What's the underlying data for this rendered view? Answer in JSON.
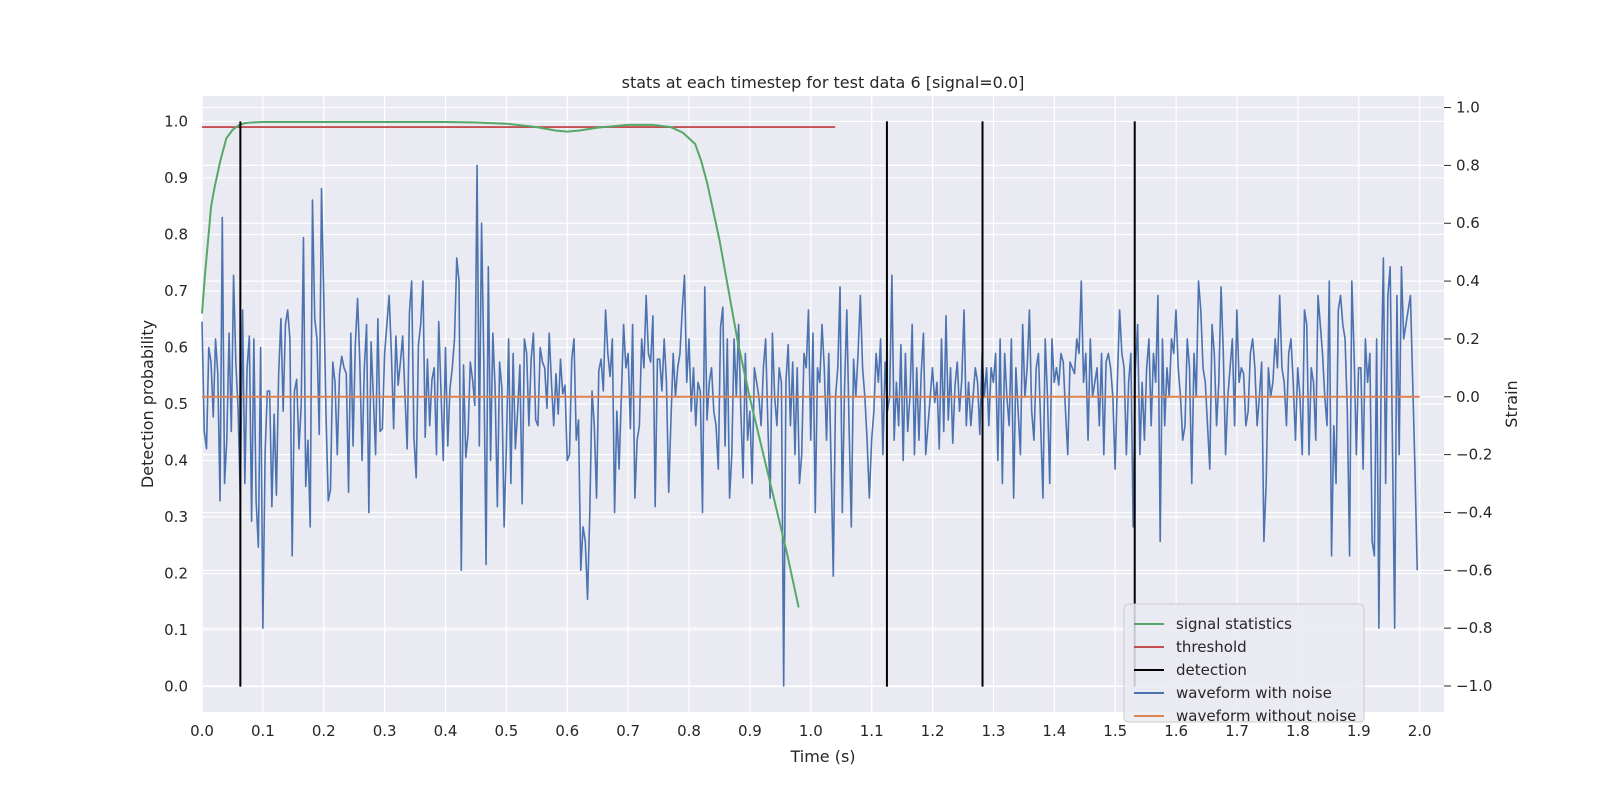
{
  "chart_data": {
    "type": "line",
    "title": "stats at each timestep for test data 6 [signal=0.0]",
    "xlabel": "Time (s)",
    "ylabel_left": "Detection probability",
    "ylabel_right": "Strain",
    "xlim": [
      0.0,
      2.04
    ],
    "ylim_left": [
      -0.045,
      1.045
    ],
    "ylim_right": [
      -1.09,
      1.04
    ],
    "grid": true,
    "legend_position": "lower-right",
    "x_ticks": [
      0.0,
      0.1,
      0.2,
      0.3,
      0.4,
      0.5,
      0.6,
      0.7,
      0.8,
      0.9,
      1.0,
      1.1,
      1.2,
      1.3,
      1.4,
      1.5,
      1.6,
      1.7,
      1.8,
      1.9,
      2.0
    ],
    "x_tick_labels": [
      "0.0",
      "0.1",
      "0.2",
      "0.3",
      "0.4",
      "0.5",
      "0.6",
      "0.7",
      "0.8",
      "0.9",
      "1.0",
      "1.1",
      "1.2",
      "1.3",
      "1.4",
      "1.5",
      "1.6",
      "1.7",
      "1.8",
      "1.9",
      "2.0"
    ],
    "y_left_ticks": [
      0.0,
      0.1,
      0.2,
      0.3,
      0.4,
      0.5,
      0.6,
      0.7,
      0.8,
      0.9,
      1.0
    ],
    "y_left_tick_labels": [
      "0.0",
      "0.1",
      "0.2",
      "0.3",
      "0.4",
      "0.5",
      "0.6",
      "0.7",
      "0.8",
      "0.9",
      "1.0"
    ],
    "y_right_ticks": [
      -1.0,
      -0.8,
      -0.6,
      -0.4,
      -0.2,
      0.0,
      0.2,
      0.4,
      0.6,
      0.8,
      1.0
    ],
    "y_right_tick_labels": [
      "−1.0",
      "−0.8",
      "−0.6",
      "−0.4",
      "−0.2",
      "0.0",
      "0.2",
      "0.4",
      "0.6",
      "0.8",
      "1.0"
    ],
    "legend": [
      "signal statistics",
      "threshold",
      "detection",
      "waveform with noise",
      "waveform without noise"
    ],
    "colors": {
      "signal_statistics": "#55a868",
      "threshold": "#c44e52",
      "detection": "#000000",
      "waveform_with_noise": "#4c72b0",
      "waveform_without_noise": "#dd8452",
      "plot_background": "#eaeaf2",
      "grid": "#ffffff"
    },
    "series": [
      {
        "name": "signal statistics",
        "axis": "left",
        "x": [
          0.0,
          0.005,
          0.01,
          0.015,
          0.02,
          0.03,
          0.04,
          0.05,
          0.06,
          0.07,
          0.08,
          0.1,
          0.2,
          0.3,
          0.4,
          0.45,
          0.5,
          0.55,
          0.58,
          0.6,
          0.62,
          0.65,
          0.7,
          0.74,
          0.77,
          0.79,
          0.81,
          0.82,
          0.83,
          0.84,
          0.85,
          0.86,
          0.87,
          0.88,
          0.9,
          0.92,
          0.94,
          0.96,
          0.97,
          0.98
        ],
        "y": [
          0.66,
          0.73,
          0.79,
          0.85,
          0.88,
          0.93,
          0.97,
          0.985,
          0.993,
          0.997,
          0.998,
          0.999,
          0.999,
          0.999,
          0.999,
          0.998,
          0.996,
          0.99,
          0.984,
          0.982,
          0.984,
          0.989,
          0.994,
          0.994,
          0.99,
          0.98,
          0.96,
          0.93,
          0.89,
          0.84,
          0.79,
          0.73,
          0.67,
          0.61,
          0.51,
          0.42,
          0.33,
          0.24,
          0.19,
          0.14
        ]
      },
      {
        "name": "threshold",
        "axis": "left",
        "x": [
          0.0,
          1.04
        ],
        "y": [
          0.99,
          0.99
        ]
      },
      {
        "name": "detection",
        "axis": "left",
        "x": [
          0.063,
          1.125,
          1.282,
          1.532
        ],
        "y": [
          1.0,
          1.0,
          1.0,
          1.0
        ]
      },
      {
        "name": "waveform with noise",
        "axis": "right",
        "x_start": 0.0,
        "x_end": 1.996,
        "y": [
          0.26,
          -0.12,
          -0.18,
          0.17,
          0.12,
          -0.07,
          0.2,
          0.08,
          -0.36,
          0.62,
          -0.3,
          -0.15,
          0.22,
          -0.12,
          0.42,
          0.12,
          -0.04,
          -0.35,
          0.3,
          -0.3,
          0.1,
          0.21,
          -0.43,
          0.2,
          -0.36,
          -0.52,
          0.17,
          -0.8,
          -0.19,
          0.02,
          0.02,
          -0.38,
          -0.06,
          -0.34,
          0.08,
          0.27,
          -0.05,
          0.25,
          0.3,
          0.2,
          -0.55,
          0.02,
          0.06,
          -0.18,
          -0.03,
          0.55,
          -0.31,
          -0.15,
          -0.45,
          0.68,
          0.27,
          0.2,
          -0.13,
          0.72,
          0.35,
          -0.06,
          -0.36,
          -0.32,
          0.12,
          0.05,
          -0.2,
          0.08,
          0.14,
          0.1,
          0.08,
          -0.33,
          0.22,
          -0.17,
          0.18,
          0.34,
          0.12,
          -0.22,
          0.1,
          0.25,
          -0.4,
          0.19,
          0.0,
          -0.2,
          0.27,
          -0.12,
          -0.11,
          0.15,
          0.25,
          0.35,
          0.15,
          -0.11,
          0.21,
          0.04,
          0.12,
          0.21,
          0.01,
          -0.18,
          0.29,
          0.4,
          -0.14,
          -0.28,
          0.18,
          0.25,
          0.4,
          -0.14,
          0.13,
          -0.1,
          0.06,
          0.1,
          -0.2,
          0.26,
          0.02,
          -0.22,
          0.17,
          -0.17,
          0.03,
          0.1,
          0.2,
          0.48,
          0.4,
          -0.6,
          0.11,
          -0.21,
          -0.13,
          0.12,
          0.06,
          -0.03,
          0.8,
          -0.17,
          0.6,
          0.12,
          -0.58,
          0.45,
          -0.22,
          0.22,
          0.03,
          -0.38,
          0.12,
          0.03,
          -0.45,
          -0.17,
          0.2,
          -0.3,
          0.15,
          -0.18,
          -0.05,
          0.11,
          -0.37,
          0.2,
          0.15,
          -0.1,
          0.13,
          0.22,
          -0.08,
          -0.1,
          0.17,
          0.12,
          0.1,
          -0.04,
          0.22,
          0.05,
          -0.1,
          0.08,
          -0.06,
          0.13,
          0.01,
          0.04,
          -0.22,
          -0.2,
          0.13,
          0.2,
          -0.15,
          -0.08,
          -0.6,
          -0.45,
          -0.5,
          -0.7,
          -0.4,
          0.02,
          -0.1,
          -0.35,
          0.09,
          0.13,
          0.02,
          0.3,
          0.15,
          0.07,
          0.2,
          -0.4,
          -0.05,
          -0.25,
          0.0,
          0.25,
          0.1,
          0.15,
          -0.11,
          0.25,
          -0.35,
          -0.15,
          -0.1,
          0.2,
          0.1,
          0.35,
          0.15,
          0.12,
          0.28,
          -0.38,
          0.13,
          0.13,
          0.02,
          0.2,
          0.05,
          -0.33,
          -0.08,
          0.15,
          0.0,
          0.1,
          0.15,
          0.3,
          0.42,
          0.05,
          0.2,
          -0.05,
          0.1,
          -0.1,
          0.05,
          0.02,
          -0.4,
          0.38,
          -0.08,
          0.05,
          0.1,
          -0.05,
          -0.1,
          -0.25,
          0.24,
          0.31,
          -0.17,
          0.2,
          -0.35,
          -0.2,
          0.2,
          0.0,
          0.25,
          -0.05,
          -0.28,
          0.15,
          -0.15,
          -0.05,
          -0.3,
          0.1,
          0.05,
          0.0,
          -0.1,
          0.1,
          0.2,
          -0.1,
          -0.35,
          0.22,
          0.0,
          -0.1,
          0.1,
          0.05,
          -1.0,
          0.05,
          0.18,
          -0.1,
          0.12,
          -0.2,
          0.1,
          -0.3,
          -0.2,
          0.15,
          0.1,
          0.3,
          -0.15,
          0.22,
          -0.4,
          0.1,
          0.05,
          0.25,
          0.1,
          -0.15,
          0.15,
          -0.22,
          -0.62,
          0.0,
          0.1,
          0.38,
          -0.4,
          0.03,
          0.3,
          -0.1,
          -0.45,
          0.13,
          0.0,
          0.15,
          0.35,
          0.1,
          0.0,
          -0.15,
          -0.35,
          -0.15,
          -0.05,
          0.15,
          0.05,
          0.2,
          -0.2,
          0.12,
          -0.05,
          0.0,
          0.42,
          -0.15,
          0.05,
          -0.1,
          0.18,
          -0.22,
          0.15,
          -0.12,
          0.0,
          0.25,
          -0.2,
          0.1,
          -0.15,
          0.08,
          0.22,
          -0.2,
          -0.1,
          0.0,
          0.1,
          -0.02,
          0.05,
          -0.18,
          0.2,
          -0.12,
          0.28,
          -0.08,
          0.1,
          -0.16,
          0.04,
          0.12,
          -0.05,
          0.06,
          0.3,
          -0.1,
          0.05,
          -0.1,
          0.0,
          0.1,
          0.05,
          -0.13,
          0.15,
          0.0,
          0.1,
          -0.1,
          0.1,
          0.05,
          0.15,
          -0.22,
          0.2,
          -0.3,
          0.15,
          0.0,
          -0.1,
          0.2,
          -0.35,
          0.1,
          -0.05,
          -0.2,
          0.25,
          0.0,
          0.1,
          0.3,
          -0.05,
          -0.15,
          0.1,
          0.15,
          -0.1,
          -0.35,
          0.2,
          0.0,
          -0.3,
          0.2,
          0.05,
          0.1,
          0.04,
          0.15,
          0.12,
          -0.05,
          -0.2,
          0.12,
          0.1,
          0.08,
          0.2,
          0.15,
          0.4,
          0.05,
          0.15,
          -0.15,
          0.2,
          0.0,
          0.05,
          0.1,
          -0.1,
          0.15,
          -0.2,
          0.12,
          0.15,
          0.1,
          0.0,
          -0.25,
          0.05,
          0.3,
          0.15,
          0.1,
          -0.2,
          0.05,
          0.15,
          -0.45,
          0.1,
          0.25,
          -0.2,
          0.05,
          -0.15,
          0.1,
          0.2,
          -0.1,
          0.15,
          0.05,
          0.35,
          -0.5,
          0.2,
          -0.1,
          0.1,
          0.0,
          0.2,
          0.15,
          0.3,
          0.1,
          0.0,
          -0.15,
          -0.1,
          0.2,
          0.1,
          -0.3,
          0.15,
          0.0,
          0.4,
          0.3,
          0.1,
          0.05,
          -0.1,
          -0.25,
          0.25,
          0.15,
          -0.1,
          0.05,
          0.38,
          0.15,
          -0.2,
          0.0,
          0.1,
          0.2,
          -0.1,
          0.3,
          0.05,
          0.1,
          0.08,
          -0.1,
          -0.05,
          0.15,
          0.2,
          0.1,
          -0.1,
          0.0,
          0.12,
          -0.5,
          -0.3,
          0.1,
          0.0,
          0.05,
          0.2,
          0.1,
          0.35,
          0.1,
          0.05,
          -0.1,
          0.15,
          0.2,
          0.05,
          -0.15,
          0.1,
          0.0,
          -0.2,
          0.3,
          0.25,
          -0.2,
          0.1,
          0.05,
          -0.15,
          0.35,
          0.25,
          0.15,
          0.0,
          -0.1,
          0.4,
          -0.55,
          -0.1,
          -0.3,
          0.3,
          0.35,
          0.25,
          0.2,
          -0.05,
          -0.55,
          0.4,
          0.15,
          -0.2,
          0.1,
          0.1,
          -0.25,
          0.2,
          0.05,
          0.15,
          -0.5,
          -0.55,
          0.2,
          -0.8,
          0.05,
          0.48,
          -0.3,
          0.35,
          0.45,
          -0.15,
          -0.8,
          0.35,
          -0.2,
          0.45,
          0.2,
          0.25,
          0.3,
          0.35,
          0.05,
          -0.25,
          -0.6
        ]
      },
      {
        "name": "waveform without noise",
        "axis": "right",
        "x": [
          0.0,
          2.0
        ],
        "y": [
          0.0,
          0.0
        ]
      }
    ]
  }
}
